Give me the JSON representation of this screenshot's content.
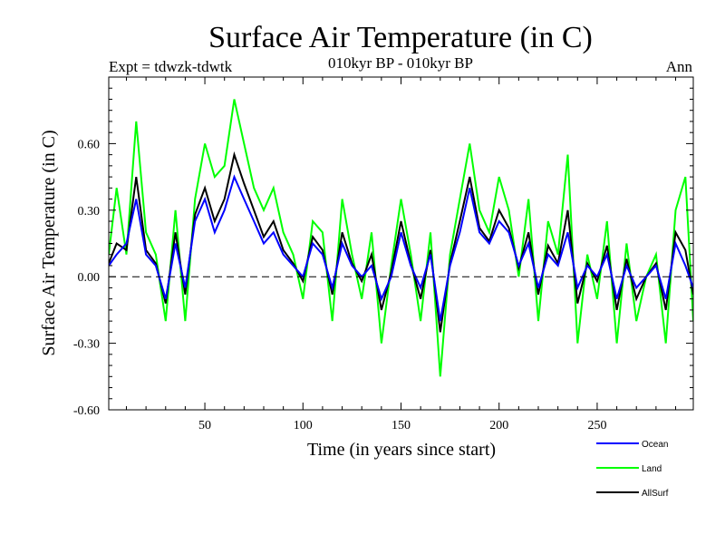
{
  "chart_data": {
    "type": "line",
    "title": "Surface Air Temperature (in C)",
    "subtitle": "010kyr BP - 010kyr BP",
    "left_note": "Expt = tdwzk-tdwtk",
    "right_note": "Ann",
    "xlabel": "Time (in years since start)",
    "ylabel": "Surface Air Temperature (in C)",
    "xlim": [
      1,
      299
    ],
    "ylim": [
      -0.6,
      0.9
    ],
    "x_ticks": [
      50,
      100,
      150,
      200,
      250
    ],
    "x_tick_labels": [
      "50",
      "100",
      "150",
      "200",
      "250"
    ],
    "y_ticks": [
      -0.6,
      -0.3,
      0.0,
      0.3,
      0.6
    ],
    "y_tick_labels": [
      "-0.60",
      "-0.30",
      "0.00",
      "0.30",
      "0.60"
    ],
    "zero_line": 0.0,
    "colors": {
      "Ocean": "#0000ff",
      "Land": "#00ff00",
      "AllSurf": "#000000"
    },
    "series": [
      {
        "name": "Ocean",
        "x": [
          1,
          5,
          10,
          15,
          20,
          25,
          30,
          35,
          40,
          45,
          50,
          55,
          60,
          65,
          70,
          75,
          80,
          85,
          90,
          95,
          100,
          105,
          110,
          115,
          120,
          125,
          130,
          135,
          140,
          145,
          150,
          155,
          160,
          165,
          170,
          175,
          180,
          185,
          190,
          195,
          200,
          205,
          210,
          215,
          220,
          225,
          230,
          235,
          240,
          245,
          250,
          255,
          260,
          265,
          270,
          275,
          280,
          285,
          290,
          295,
          299
        ],
        "values": [
          0.05,
          0.1,
          0.15,
          0.35,
          0.1,
          0.05,
          -0.1,
          0.15,
          -0.05,
          0.25,
          0.35,
          0.2,
          0.3,
          0.45,
          0.35,
          0.25,
          0.15,
          0.2,
          0.1,
          0.05,
          0.0,
          0.15,
          0.1,
          -0.05,
          0.15,
          0.05,
          0.0,
          0.05,
          -0.1,
          0.0,
          0.2,
          0.05,
          -0.05,
          0.1,
          -0.2,
          0.05,
          0.2,
          0.4,
          0.2,
          0.15,
          0.25,
          0.2,
          0.05,
          0.15,
          -0.05,
          0.1,
          0.05,
          0.2,
          -0.05,
          0.05,
          0.0,
          0.1,
          -0.1,
          0.05,
          -0.05,
          0.0,
          0.05,
          -0.1,
          0.15,
          0.05,
          -0.05
        ]
      },
      {
        "name": "Land",
        "x": [
          1,
          5,
          10,
          15,
          20,
          25,
          30,
          35,
          40,
          45,
          50,
          55,
          60,
          65,
          70,
          75,
          80,
          85,
          90,
          95,
          100,
          105,
          110,
          115,
          120,
          125,
          130,
          135,
          140,
          145,
          150,
          155,
          160,
          165,
          170,
          175,
          180,
          185,
          190,
          195,
          200,
          205,
          210,
          215,
          220,
          225,
          230,
          235,
          240,
          245,
          250,
          255,
          260,
          265,
          270,
          275,
          280,
          285,
          290,
          295,
          299
        ],
        "values": [
          0.1,
          0.4,
          0.1,
          0.7,
          0.2,
          0.1,
          -0.2,
          0.3,
          -0.2,
          0.35,
          0.6,
          0.45,
          0.5,
          0.8,
          0.6,
          0.4,
          0.3,
          0.4,
          0.2,
          0.1,
          -0.1,
          0.25,
          0.2,
          -0.2,
          0.35,
          0.1,
          -0.1,
          0.2,
          -0.3,
          0.05,
          0.35,
          0.1,
          -0.2,
          0.2,
          -0.45,
          0.1,
          0.35,
          0.6,
          0.3,
          0.2,
          0.45,
          0.3,
          0.0,
          0.35,
          -0.2,
          0.25,
          0.1,
          0.55,
          -0.3,
          0.1,
          -0.1,
          0.25,
          -0.3,
          0.15,
          -0.2,
          0.0,
          0.1,
          -0.3,
          0.3,
          0.45,
          -0.2
        ]
      },
      {
        "name": "AllSurf",
        "x": [
          1,
          5,
          10,
          15,
          20,
          25,
          30,
          35,
          40,
          45,
          50,
          55,
          60,
          65,
          70,
          75,
          80,
          85,
          90,
          95,
          100,
          105,
          110,
          115,
          120,
          125,
          130,
          135,
          140,
          145,
          150,
          155,
          160,
          165,
          170,
          175,
          180,
          185,
          190,
          195,
          200,
          205,
          210,
          215,
          220,
          225,
          230,
          235,
          240,
          245,
          250,
          255,
          260,
          265,
          270,
          275,
          280,
          285,
          290,
          295,
          299
        ],
        "values": [
          0.06,
          0.15,
          0.12,
          0.45,
          0.12,
          0.06,
          -0.12,
          0.2,
          -0.08,
          0.28,
          0.4,
          0.25,
          0.35,
          0.55,
          0.42,
          0.3,
          0.18,
          0.25,
          0.12,
          0.06,
          -0.02,
          0.18,
          0.12,
          -0.08,
          0.2,
          0.06,
          -0.02,
          0.1,
          -0.15,
          0.02,
          0.25,
          0.06,
          -0.1,
          0.12,
          -0.25,
          0.06,
          0.25,
          0.45,
          0.22,
          0.16,
          0.3,
          0.22,
          0.04,
          0.2,
          -0.08,
          0.14,
          0.06,
          0.3,
          -0.12,
          0.06,
          -0.02,
          0.14,
          -0.15,
          0.08,
          -0.1,
          0.0,
          0.06,
          -0.15,
          0.2,
          0.12,
          -0.08
        ]
      }
    ]
  }
}
